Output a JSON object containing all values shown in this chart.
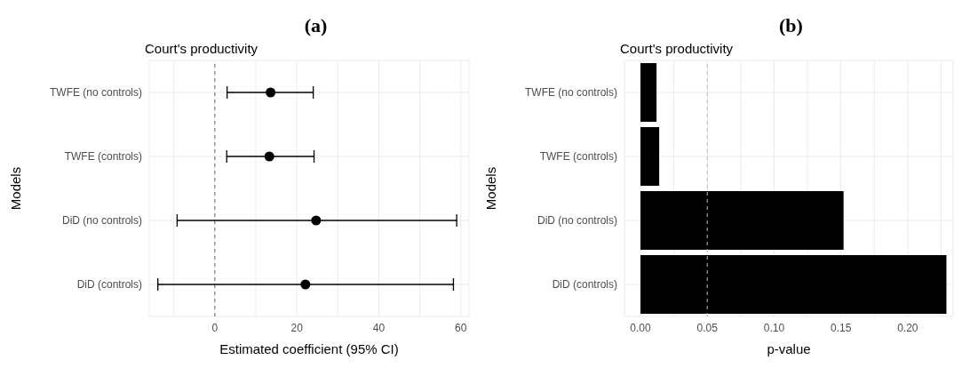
{
  "chart_data": [
    {
      "type": "scatter",
      "orientation": "horizontal",
      "title": "(a)",
      "subtitle": "Court's productivity",
      "xlabel": "Estimated coefficient (95% CI)",
      "ylabel": "Models",
      "categories": [
        "TWFE (no controls)",
        "TWFE (controls)",
        "DiD (no controls)",
        "DiD (controls)"
      ],
      "values": [
        13.6,
        13.3,
        24.7,
        22.1
      ],
      "errors": [
        [
          3.0,
          24.0
        ],
        [
          2.9,
          24.2
        ],
        [
          -9.2,
          59.0
        ],
        [
          -13.9,
          58.2
        ]
      ],
      "color": "#000000",
      "marker": "circle",
      "xlim": [
        -16,
        62
      ],
      "xticks": [
        {
          "value": -10,
          "label": null
        },
        0,
        {
          "value": 10,
          "label": null
        },
        20,
        {
          "value": 30,
          "label": null
        },
        40,
        {
          "value": 50,
          "label": null
        },
        60
      ],
      "ref_lines": [
        {
          "axis": "x",
          "value": 0,
          "color": "#666666",
          "line_style": "dashed"
        }
      ],
      "grid": true
    },
    {
      "type": "bar",
      "orientation": "horizontal",
      "title": "(b)",
      "subtitle": "Court's productivity",
      "xlabel": "p-value",
      "ylabel": "Models",
      "categories": [
        "TWFE (no controls)",
        "TWFE (controls)",
        "DiD (no controls)",
        "DiD (controls)"
      ],
      "values": [
        0.012,
        0.014,
        0.152,
        0.229
      ],
      "color": "#000000",
      "xlim": [
        -0.012,
        0.234
      ],
      "xticks": [
        {
          "value": 0,
          "label": "0.00"
        },
        {
          "value": 0.025,
          "label": null
        },
        0.05,
        {
          "value": 0.075,
          "label": null
        },
        {
          "value": 0.1,
          "label": "0.10"
        },
        {
          "value": 0.125,
          "label": null
        },
        0.15,
        {
          "value": 0.175,
          "label": null
        },
        {
          "value": 0.2,
          "label": "0.20"
        },
        {
          "value": 0.225,
          "label": null
        }
      ],
      "ref_lines": [
        {
          "axis": "x",
          "value": 0.05,
          "color": "#bbbbbb",
          "line_style": "dashed"
        }
      ],
      "grid": true
    }
  ]
}
